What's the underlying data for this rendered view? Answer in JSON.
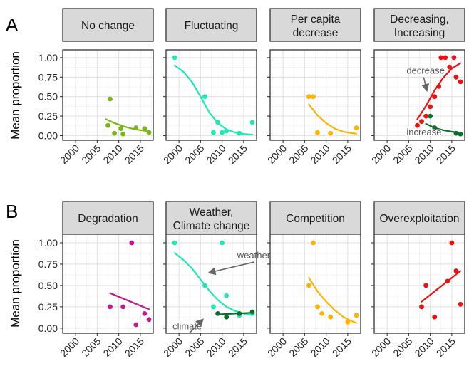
{
  "figure": {
    "panel_letters": [
      "A",
      "B"
    ],
    "ylabel": "Mean proportion",
    "x_ticks": [
      2000,
      2005,
      2010,
      2015
    ],
    "y_ticks": [
      "0.00",
      "0.25",
      "0.50",
      "0.75",
      "1.00"
    ]
  },
  "chart_data": [
    {
      "type": "scatter",
      "row": 0,
      "col": 0,
      "title_lines": [
        "No change"
      ],
      "xlim": [
        1997,
        2018
      ],
      "ylim": [
        -0.06,
        1.1
      ],
      "grid": true,
      "series": [
        {
          "color": "#7cb518",
          "points": [
            [
              2007.5,
              0.13
            ],
            [
              2008,
              0.47
            ],
            [
              2009,
              0.03
            ],
            [
              2010.5,
              0.09
            ],
            [
              2011,
              0.02
            ],
            [
              2014,
              0.1
            ],
            [
              2016,
              0.09
            ],
            [
              2017,
              0.04
            ]
          ],
          "fit": [
            [
              2007,
              0.21
            ],
            [
              2009,
              0.16
            ],
            [
              2011,
              0.12
            ],
            [
              2013,
              0.09
            ],
            [
              2015,
              0.07
            ],
            [
              2017,
              0.055
            ]
          ]
        }
      ]
    },
    {
      "type": "scatter",
      "row": 0,
      "col": 1,
      "title_lines": [
        "Fluctuating"
      ],
      "xlim": [
        1997,
        2018
      ],
      "ylim": [
        -0.06,
        1.1
      ],
      "grid": true,
      "series": [
        {
          "color": "#1de9b6",
          "points": [
            [
              1999,
              1.0
            ],
            [
              2006,
              0.5
            ],
            [
              2008,
              0.04
            ],
            [
              2009,
              0.17
            ],
            [
              2010,
              0.04
            ],
            [
              2011,
              0.06
            ],
            [
              2014,
              0.03
            ],
            [
              2017,
              0.17
            ]
          ],
          "fit": [
            [
              1999,
              0.9
            ],
            [
              2001,
              0.82
            ],
            [
              2003,
              0.69
            ],
            [
              2005,
              0.5
            ],
            [
              2007,
              0.3
            ],
            [
              2009,
              0.16
            ],
            [
              2011,
              0.08
            ],
            [
              2013,
              0.04
            ],
            [
              2015,
              0.02
            ],
            [
              2017,
              0.012
            ]
          ]
        }
      ]
    },
    {
      "type": "scatter",
      "row": 0,
      "col": 2,
      "title_lines": [
        "Per capita",
        "decrease"
      ],
      "xlim": [
        1997,
        2018
      ],
      "ylim": [
        -0.06,
        1.1
      ],
      "grid": true,
      "series": [
        {
          "color": "#ffb300",
          "points": [
            [
              2006,
              0.5
            ],
            [
              2007,
              0.5
            ],
            [
              2008,
              0.04
            ],
            [
              2011,
              0.03
            ],
            [
              2017,
              0.1
            ]
          ],
          "fit": [
            [
              2006,
              0.4
            ],
            [
              2008,
              0.26
            ],
            [
              2010,
              0.16
            ],
            [
              2012,
              0.09
            ],
            [
              2014,
              0.05
            ],
            [
              2016,
              0.03
            ],
            [
              2017,
              0.025
            ]
          ]
        }
      ]
    },
    {
      "type": "scatter",
      "row": 0,
      "col": 3,
      "title_lines": [
        "Decreasing,",
        "Increasing"
      ],
      "xlim": [
        1997,
        2018
      ],
      "ylim": [
        -0.06,
        1.1
      ],
      "grid": true,
      "series": [
        {
          "color": "#ee1111",
          "points": [
            [
              2007,
              0.13
            ],
            [
              2008,
              0.18
            ],
            [
              2009,
              0.25
            ],
            [
              2010,
              0.37
            ],
            [
              2011,
              0.5
            ],
            [
              2012,
              0.63
            ],
            [
              2012.5,
              1.0
            ],
            [
              2013.5,
              1.0
            ],
            [
              2014.5,
              0.88
            ],
            [
              2015.5,
              1.0
            ],
            [
              2016,
              0.75
            ],
            [
              2017,
              0.69
            ]
          ],
          "fit": [
            [
              2007,
              0.21
            ],
            [
              2009,
              0.38
            ],
            [
              2011,
              0.58
            ],
            [
              2013,
              0.74
            ],
            [
              2015,
              0.86
            ],
            [
              2017,
              0.93
            ]
          ]
        },
        {
          "color": "#0b6e2e",
          "points": [
            [
              2009,
              0.04
            ],
            [
              2010,
              0.25
            ],
            [
              2011,
              0.1
            ],
            [
              2016,
              0.03
            ],
            [
              2017,
              0.02
            ]
          ],
          "fit": [
            [
              2009,
              0.15
            ],
            [
              2011,
              0.1
            ],
            [
              2013,
              0.07
            ],
            [
              2015,
              0.05
            ],
            [
              2017,
              0.035
            ]
          ]
        }
      ],
      "annotations": [
        {
          "text": "decrease",
          "x": 2004.5,
          "y": 0.83,
          "arrow_to": [
            2009.2,
            0.58
          ]
        },
        {
          "text": "increase",
          "x": 2004.5,
          "y": 0.04,
          "arrow_to": null
        }
      ]
    },
    {
      "type": "scatter",
      "row": 1,
      "col": 0,
      "title_lines": [
        "Degradation"
      ],
      "xlim": [
        1997,
        2018
      ],
      "ylim": [
        -0.06,
        1.1
      ],
      "grid": true,
      "series": [
        {
          "color": "#c4168f",
          "points": [
            [
              2008,
              0.25
            ],
            [
              2011,
              0.25
            ],
            [
              2013,
              1.0
            ],
            [
              2014,
              0.04
            ],
            [
              2016,
              0.17
            ],
            [
              2017,
              0.1
            ]
          ],
          "fit": [
            [
              2008,
              0.41
            ],
            [
              2017,
              0.22
            ]
          ]
        }
      ]
    },
    {
      "type": "scatter",
      "row": 1,
      "col": 1,
      "title_lines": [
        "Weather,",
        "Climate change"
      ],
      "xlim": [
        1997,
        2018
      ],
      "ylim": [
        -0.06,
        1.1
      ],
      "grid": true,
      "series": [
        {
          "color": "#1de9b6",
          "points": [
            [
              1999,
              1.0
            ],
            [
              2006,
              0.5
            ],
            [
              2008,
              0.25
            ],
            [
              2010,
              1.0
            ],
            [
              2011,
              0.38
            ],
            [
              2014,
              0.15
            ],
            [
              2017,
              0.17
            ]
          ],
          "fit": [
            [
              1999,
              0.88
            ],
            [
              2001,
              0.8
            ],
            [
              2003,
              0.7
            ],
            [
              2005,
              0.57
            ],
            [
              2007,
              0.44
            ],
            [
              2009,
              0.33
            ],
            [
              2011,
              0.25
            ],
            [
              2013,
              0.2
            ],
            [
              2015,
              0.17
            ],
            [
              2017,
              0.15
            ]
          ]
        },
        {
          "color": "#0b6e2e",
          "points": [
            [
              2009,
              0.17
            ],
            [
              2011,
              0.13
            ],
            [
              2014,
              0.17
            ],
            [
              2017,
              0.19
            ]
          ],
          "fit": [
            [
              2009,
              0.16
            ],
            [
              2017,
              0.18
            ]
          ]
        }
      ],
      "annotations": [
        {
          "text": "weather",
          "x": 2013.5,
          "y": 0.85,
          "arrow_to": [
            2007,
            0.65
          ]
        },
        {
          "text": "climate",
          "x": 1998.5,
          "y": 0.02,
          "arrow_to": [
            2005.5,
            0.1
          ]
        }
      ]
    },
    {
      "type": "scatter",
      "row": 1,
      "col": 2,
      "title_lines": [
        "Competition"
      ],
      "xlim": [
        1997,
        2018
      ],
      "ylim": [
        -0.06,
        1.1
      ],
      "grid": true,
      "series": [
        {
          "color": "#ffb300",
          "points": [
            [
              2006,
              0.5
            ],
            [
              2007,
              1.0
            ],
            [
              2008,
              0.25
            ],
            [
              2009,
              0.17
            ],
            [
              2011,
              0.13
            ],
            [
              2015,
              0.07
            ],
            [
              2017,
              0.15
            ]
          ],
          "fit": [
            [
              2006,
              0.59
            ],
            [
              2008,
              0.43
            ],
            [
              2010,
              0.31
            ],
            [
              2012,
              0.21
            ],
            [
              2014,
              0.13
            ],
            [
              2016,
              0.08
            ],
            [
              2017,
              0.06
            ]
          ]
        }
      ]
    },
    {
      "type": "scatter",
      "row": 1,
      "col": 3,
      "title_lines": [
        "Overexploitation"
      ],
      "xlim": [
        1997,
        2018
      ],
      "ylim": [
        -0.06,
        1.1
      ],
      "grid": true,
      "series": [
        {
          "color": "#ee1111",
          "points": [
            [
              2008,
              0.25
            ],
            [
              2009,
              0.5
            ],
            [
              2011,
              0.13
            ],
            [
              2014,
              0.55
            ],
            [
              2015,
              1.0
            ],
            [
              2016,
              0.67
            ],
            [
              2017,
              0.28
            ]
          ],
          "fit": [
            [
              2008,
              0.31
            ],
            [
              2017,
              0.67
            ]
          ]
        }
      ]
    }
  ]
}
